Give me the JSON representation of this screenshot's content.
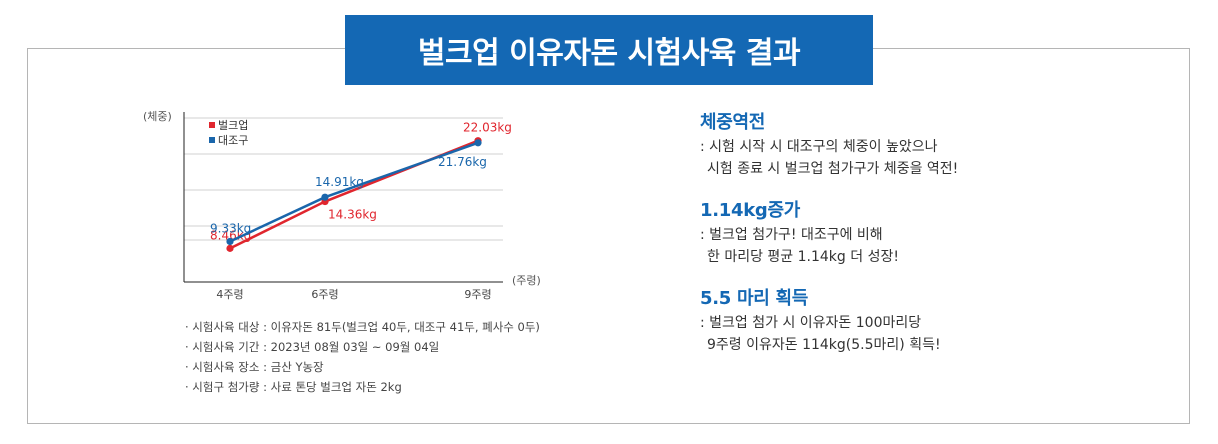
{
  "title": "벌크업 이유자돈 시험사육 결과",
  "chart_data": {
    "type": "line",
    "y_axis_label": "(체중)",
    "x_axis_label": "(주령)",
    "categories": [
      "4주령",
      "6주령",
      "9주령"
    ],
    "ylim": [
      7.5,
      23.5
    ],
    "series": [
      {
        "name": "벌크업",
        "color": "#e0262e",
        "values": [
          8.46,
          14.36,
          22.03
        ],
        "labels": [
          "8.46kg",
          "14.36kg",
          "22.03kg"
        ]
      },
      {
        "name": "대조구",
        "color": "#1a66ab",
        "values": [
          9.33,
          14.91,
          21.76
        ],
        "labels": [
          "9.33kg",
          "14.91kg",
          "21.76kg"
        ]
      }
    ]
  },
  "notes": [
    "· 시험사육 대상 : 이유자돈 81두(벌크업 40두, 대조구 41두, 폐사수 0두)",
    "· 시험사육 기간 : 2023년 08월 03일 ~ 09월 04일",
    "· 시험사육 장소 : 금산 Y농장",
    "· 시험구 첨가량 : 사료 톤당 벌크업 자돈 2kg"
  ],
  "results": [
    {
      "heading": "체중역전",
      "lines": [
        ": 시험 시작 시 대조구의 체중이 높았으나",
        "  시험 종료 시 벌크업 첨가구가 체중을 역전!"
      ]
    },
    {
      "heading": "1.14kg증가",
      "lines": [
        ": 벌크업 첨가구! 대조구에 비해",
        "  한 마리당 평균 1.14kg 더 성장!"
      ]
    },
    {
      "heading": "5.5 마리 획득",
      "lines": [
        ": 벌크업 첨가 시 이유자돈 100마리당",
        "  9주령 이유자돈 114kg(5.5마리) 획득!"
      ]
    }
  ]
}
